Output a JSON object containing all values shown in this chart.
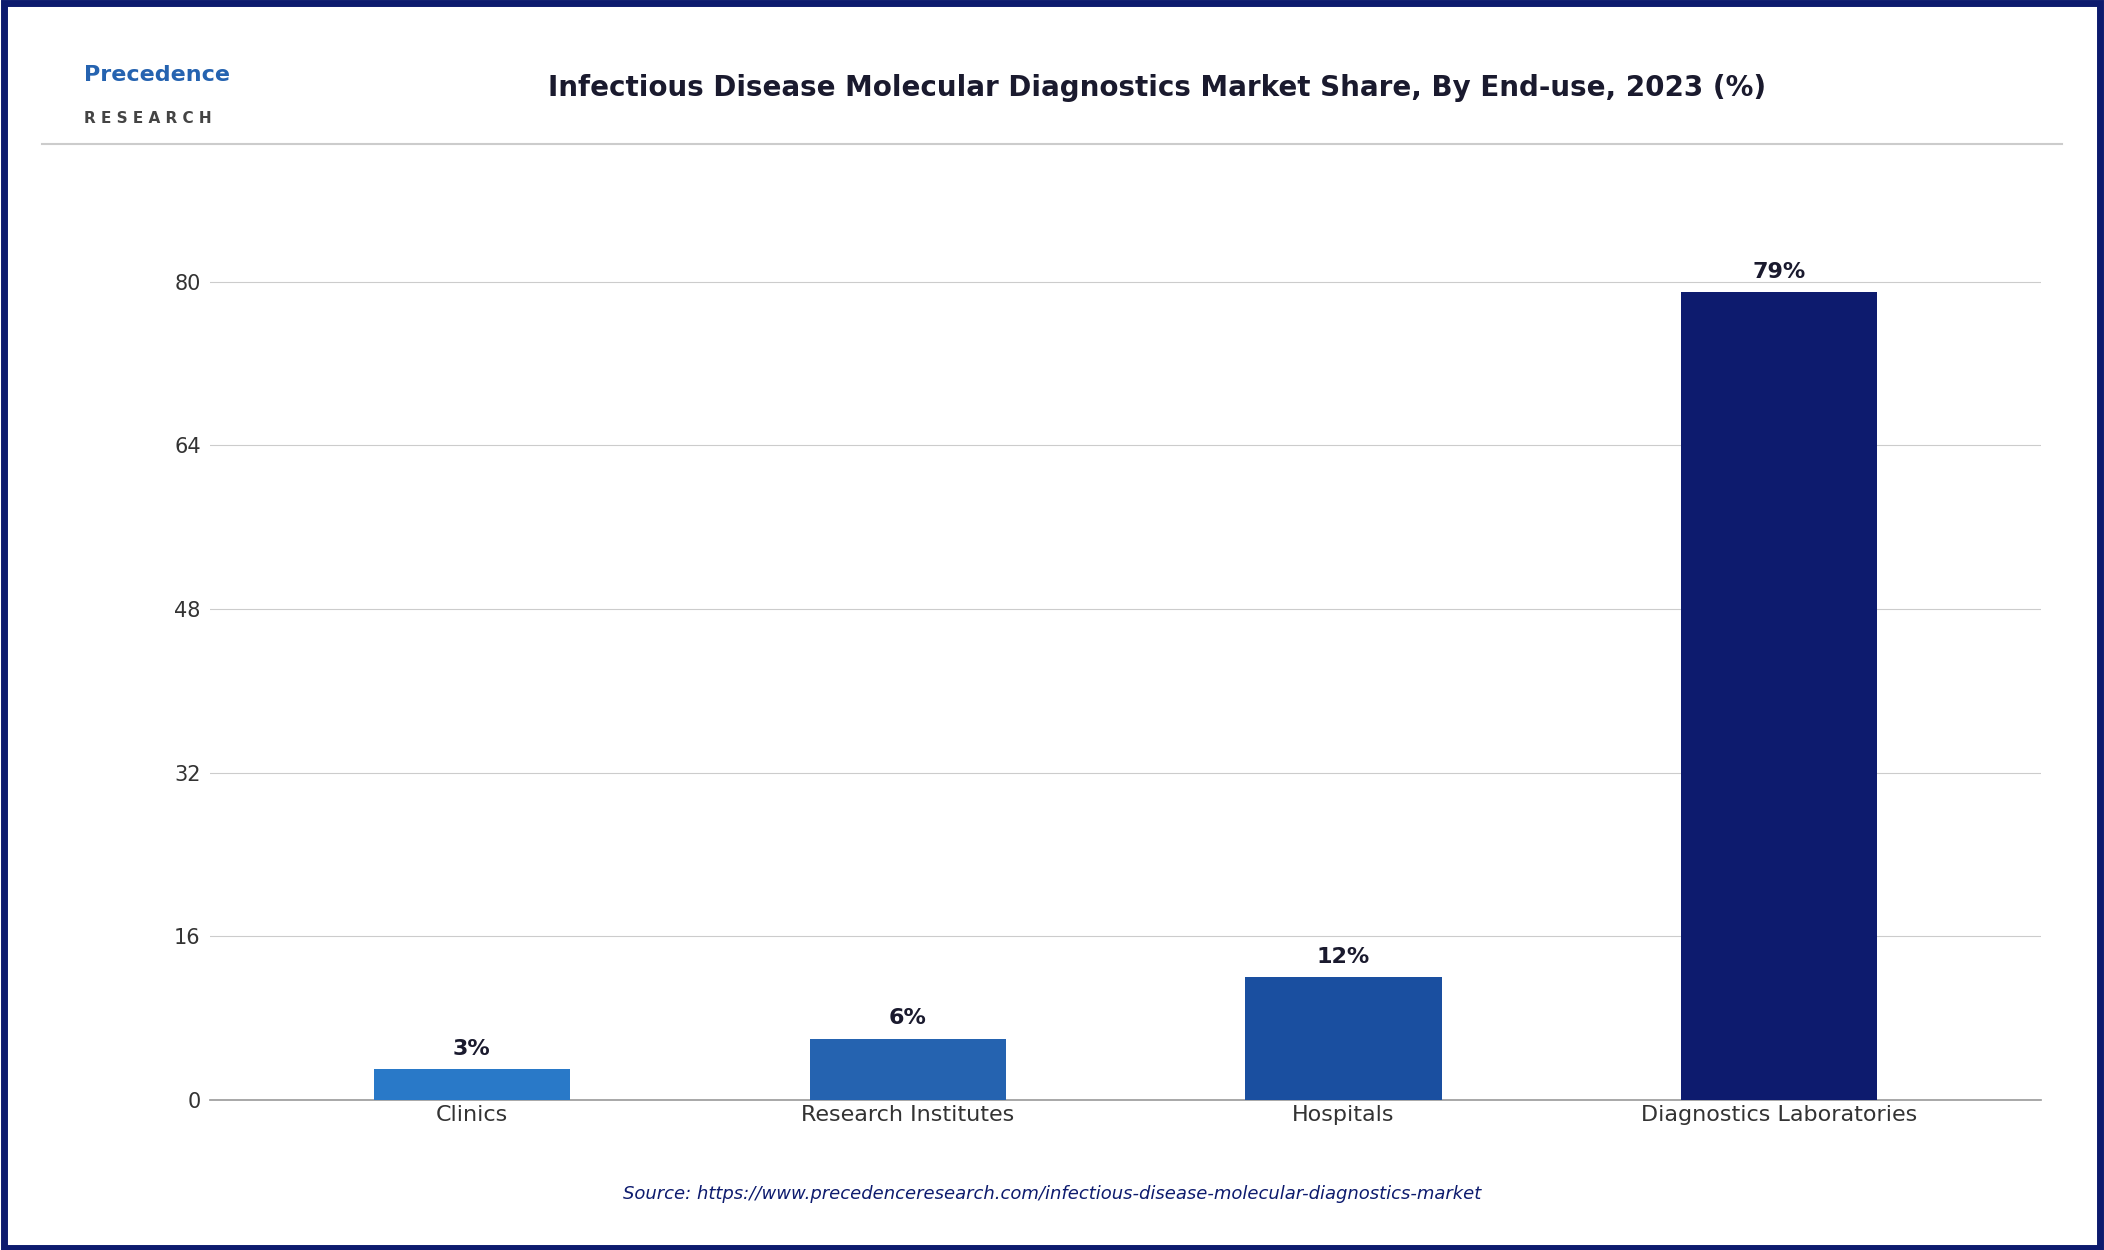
{
  "title": "Infectious Disease Molecular Diagnostics Market Share, By End-use, 2023 (%)",
  "categories": [
    "Clinics",
    "Research Institutes",
    "Hospitals",
    "Diagnostics Laboratories"
  ],
  "values": [
    3,
    6,
    12,
    79
  ],
  "labels": [
    "3%",
    "6%",
    "12%",
    "79%"
  ],
  "bar_colors": [
    "#2979c8",
    "#2563b0",
    "#1a4fa0",
    "#0d1b6e"
  ],
  "yticks": [
    0,
    16,
    32,
    48,
    64,
    80
  ],
  "ylim": [
    0,
    88
  ],
  "background_color": "#ffffff",
  "plot_bg_color": "#ffffff",
  "title_color": "#1a1a2e",
  "tick_color": "#333333",
  "label_color": "#1a1a2e",
  "source_text": "Source: https://www.precedenceresearch.com/infectious-disease-molecular-diagnostics-market",
  "source_color": "#0d1b6e",
  "border_color": "#0d1b6e",
  "title_fontsize": 20,
  "label_fontsize": 16,
  "tick_fontsize": 15,
  "source_fontsize": 13,
  "bar_width": 0.45,
  "logo_precedence_color": "#2563b0",
  "logo_research_color": "#444444",
  "grid_color": "#cccccc",
  "separator_color": "#cccccc"
}
